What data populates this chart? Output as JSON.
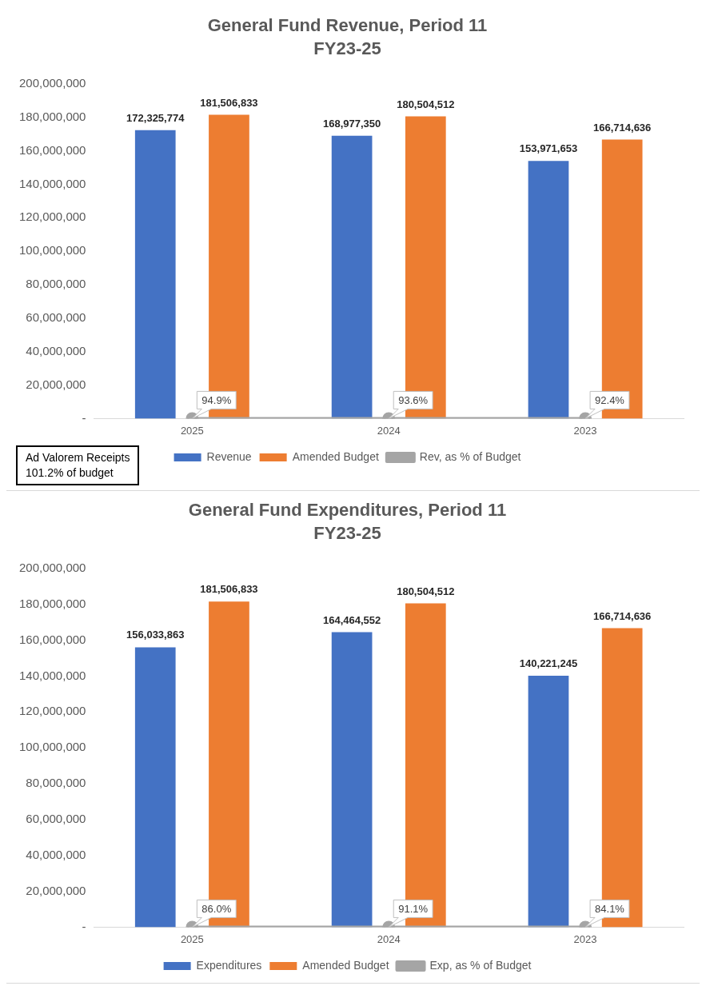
{
  "chart_data": [
    {
      "type": "bar",
      "title": "General Fund Revenue, Period 11",
      "subtitle": "FY23-25",
      "categories": [
        "2025",
        "2024",
        "2023"
      ],
      "series": [
        {
          "name": "Revenue",
          "color": "#4472c4",
          "values": [
            172325774,
            168977350,
            153971653
          ],
          "value_labels": [
            "172,325,774",
            "168,977,350",
            "153,971,653"
          ]
        },
        {
          "name": "Amended Budget",
          "color": "#ed7d31",
          "values": [
            181506833,
            180504512,
            166714636
          ],
          "value_labels": [
            "181,506,833",
            "180,504,512",
            "166,714,636"
          ]
        },
        {
          "name": "Rev, as % of Budget",
          "type": "line",
          "color": "#a5a5a5",
          "values": [
            94.9,
            93.6,
            92.4
          ],
          "value_labels": [
            "94.9%",
            "93.6%",
            "92.4%"
          ]
        }
      ],
      "ylim": [
        0,
        200000000
      ],
      "yticks": [
        {
          "value": 0,
          "label": "-"
        },
        {
          "value": 20000000,
          "label": "20,000,000"
        },
        {
          "value": 40000000,
          "label": "40,000,000"
        },
        {
          "value": 60000000,
          "label": "60,000,000"
        },
        {
          "value": 80000000,
          "label": "80,000,000"
        },
        {
          "value": 100000000,
          "label": "100,000,000"
        },
        {
          "value": 120000000,
          "label": "120,000,000"
        },
        {
          "value": 140000000,
          "label": "140,000,000"
        },
        {
          "value": 160000000,
          "label": "160,000,000"
        },
        {
          "value": 180000000,
          "label": "180,000,000"
        },
        {
          "value": 200000000,
          "label": "200,000,000"
        }
      ],
      "grid": false,
      "legend": "bottom",
      "marker": "circle",
      "annotations": [
        "Ad Valorem Receipts\n101.2% of budget"
      ]
    },
    {
      "type": "bar",
      "title": "General Fund Expenditures, Period 11",
      "subtitle": "FY23-25",
      "categories": [
        "2025",
        "2024",
        "2023"
      ],
      "series": [
        {
          "name": "Expenditures",
          "color": "#4472c4",
          "values": [
            156033863,
            164464552,
            140221245
          ],
          "value_labels": [
            "156,033,863",
            "164,464,552",
            "140,221,245"
          ]
        },
        {
          "name": "Amended Budget",
          "color": "#ed7d31",
          "values": [
            181506833,
            180504512,
            166714636
          ],
          "value_labels": [
            "181,506,833",
            "180,504,512",
            "166,714,636"
          ]
        },
        {
          "name": "Exp, as % of Budget",
          "type": "line",
          "color": "#a5a5a5",
          "values": [
            86.0,
            91.1,
            84.1
          ],
          "value_labels": [
            "86.0%",
            "91.1%",
            "84.1%"
          ]
        }
      ],
      "ylim": [
        0,
        200000000
      ],
      "yticks": [
        {
          "value": 0,
          "label": "-"
        },
        {
          "value": 20000000,
          "label": "20,000,000"
        },
        {
          "value": 40000000,
          "label": "40,000,000"
        },
        {
          "value": 60000000,
          "label": "60,000,000"
        },
        {
          "value": 80000000,
          "label": "80,000,000"
        },
        {
          "value": 100000000,
          "label": "100,000,000"
        },
        {
          "value": 120000000,
          "label": "120,000,000"
        },
        {
          "value": 140000000,
          "label": "140,000,000"
        },
        {
          "value": 160000000,
          "label": "160,000,000"
        },
        {
          "value": 180000000,
          "label": "180,000,000"
        },
        {
          "value": 200000000,
          "label": "200,000,000"
        }
      ],
      "grid": false,
      "legend": "bottom",
      "marker": "circle"
    }
  ]
}
